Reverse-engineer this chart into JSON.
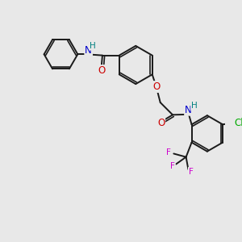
{
  "background_color": "#e8e8e8",
  "bond_color": "#1a1a1a",
  "atom_colors": {
    "O": "#cc0000",
    "N": "#0000cc",
    "H": "#008080",
    "Cl": "#00aa00",
    "F": "#cc00cc"
  },
  "figsize": [
    3.0,
    3.0
  ],
  "dpi": 100
}
